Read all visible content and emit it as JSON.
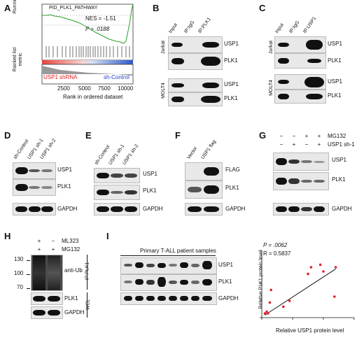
{
  "panels": {
    "A": "A",
    "B": "B",
    "C": "C",
    "D": "D",
    "E": "E",
    "F": "F",
    "G": "G",
    "H": "H",
    "I": "I"
  },
  "panelA": {
    "title": "PID_PLK1_PATHWAY",
    "nes": "NES = -1.51",
    "p": "P = .0188",
    "ylabel1": "Running enrichment score",
    "ylabel2": "Ranked list metric",
    "xlabel": "Rank in ordered dataset",
    "xticks": [
      "2500",
      "5000",
      "7500",
      "10000"
    ],
    "left_label": "USP1 shRNA",
    "right_label": "sh-Control"
  },
  "panelB": {
    "lanes": [
      "Input",
      "IP:IgG",
      "IP:PLK1"
    ],
    "cell1": "Jurkat",
    "cell2": "MOLT4",
    "rows": [
      "USP1",
      "PLK1",
      "USP1",
      "PLK1"
    ]
  },
  "panelC": {
    "lanes": [
      "Input",
      "IP:IgG",
      "IP:USP1"
    ],
    "cell1": "Jurkat",
    "cell2": "MOLT4",
    "rows": [
      "USP1",
      "PLK1",
      "USP1",
      "PLK1"
    ]
  },
  "panelD": {
    "lanes": [
      "sh-Control",
      "USP1 sh-1",
      "USP1 sh-2"
    ],
    "rows": [
      "USP1",
      "PLK1",
      "GAPDH"
    ]
  },
  "panelE": {
    "lanes": [
      "sh-Control",
      "USP1 sh-1",
      "USP1 sh-2"
    ],
    "rows": [
      "USP1",
      "PLK1",
      "GAPDH"
    ]
  },
  "panelF": {
    "lanes": [
      "Vector",
      "USP1 flag"
    ],
    "rows": [
      "FLAG",
      "PLK1",
      "GAPDH"
    ]
  },
  "panelG": {
    "treat1": "MG132",
    "treat2": "USP1 sh-1",
    "row1": [
      "−",
      "−",
      "+",
      "+"
    ],
    "row2": [
      "−",
      "+",
      "−",
      "+"
    ],
    "rows": [
      "USP1",
      "PLK1",
      "GAPDH"
    ]
  },
  "panelH": {
    "treat1": "ML323",
    "treat2": "MG132",
    "row1": [
      "+",
      "−"
    ],
    "row2": [
      "+",
      "+"
    ],
    "mw": [
      "130",
      "100",
      "70"
    ],
    "ip": "IP:PLK1",
    "wcl": "WCL",
    "rows": [
      "anti-Ub",
      "PLK1",
      "GAPDH"
    ]
  },
  "panelI": {
    "header": "Primary T-ALL patient samples",
    "rows": [
      "USP1",
      "PLK1",
      "GAPDH"
    ],
    "p": "P = .0062",
    "r": "R = 0.5837",
    "ylabel": "Relative PLK1 protein level",
    "xlabel": "Relative USP1 protein level"
  },
  "chart_data": {
    "type": "scatter",
    "xlabel": "Relative USP1 protein level",
    "ylabel": "Relative PLK1 protein level",
    "xlim": [
      0,
      1.5
    ],
    "ylim": [
      0,
      0.8
    ],
    "xticks": [
      "0.0",
      "0.5",
      "1.0",
      "1.5"
    ],
    "yticks": [
      "0.0",
      "0.2",
      "0.4",
      "0.6",
      "0.8"
    ],
    "points": [
      {
        "x": 0.05,
        "y": 0.05
      },
      {
        "x": 0.08,
        "y": 0.07
      },
      {
        "x": 0.1,
        "y": 0.05
      },
      {
        "x": 0.13,
        "y": 0.18
      },
      {
        "x": 0.15,
        "y": 0.33
      },
      {
        "x": 0.35,
        "y": 0.13
      },
      {
        "x": 0.45,
        "y": 0.2
      },
      {
        "x": 0.75,
        "y": 0.52
      },
      {
        "x": 0.8,
        "y": 0.6
      },
      {
        "x": 0.95,
        "y": 0.63
      },
      {
        "x": 1.0,
        "y": 0.55
      },
      {
        "x": 1.2,
        "y": 0.6
      },
      {
        "x": 1.18,
        "y": 0.25
      }
    ],
    "fit_line": [
      {
        "x": 0.05,
        "y": 0.03
      },
      {
        "x": 1.2,
        "y": 0.58
      }
    ],
    "point_color": "#e02030"
  }
}
